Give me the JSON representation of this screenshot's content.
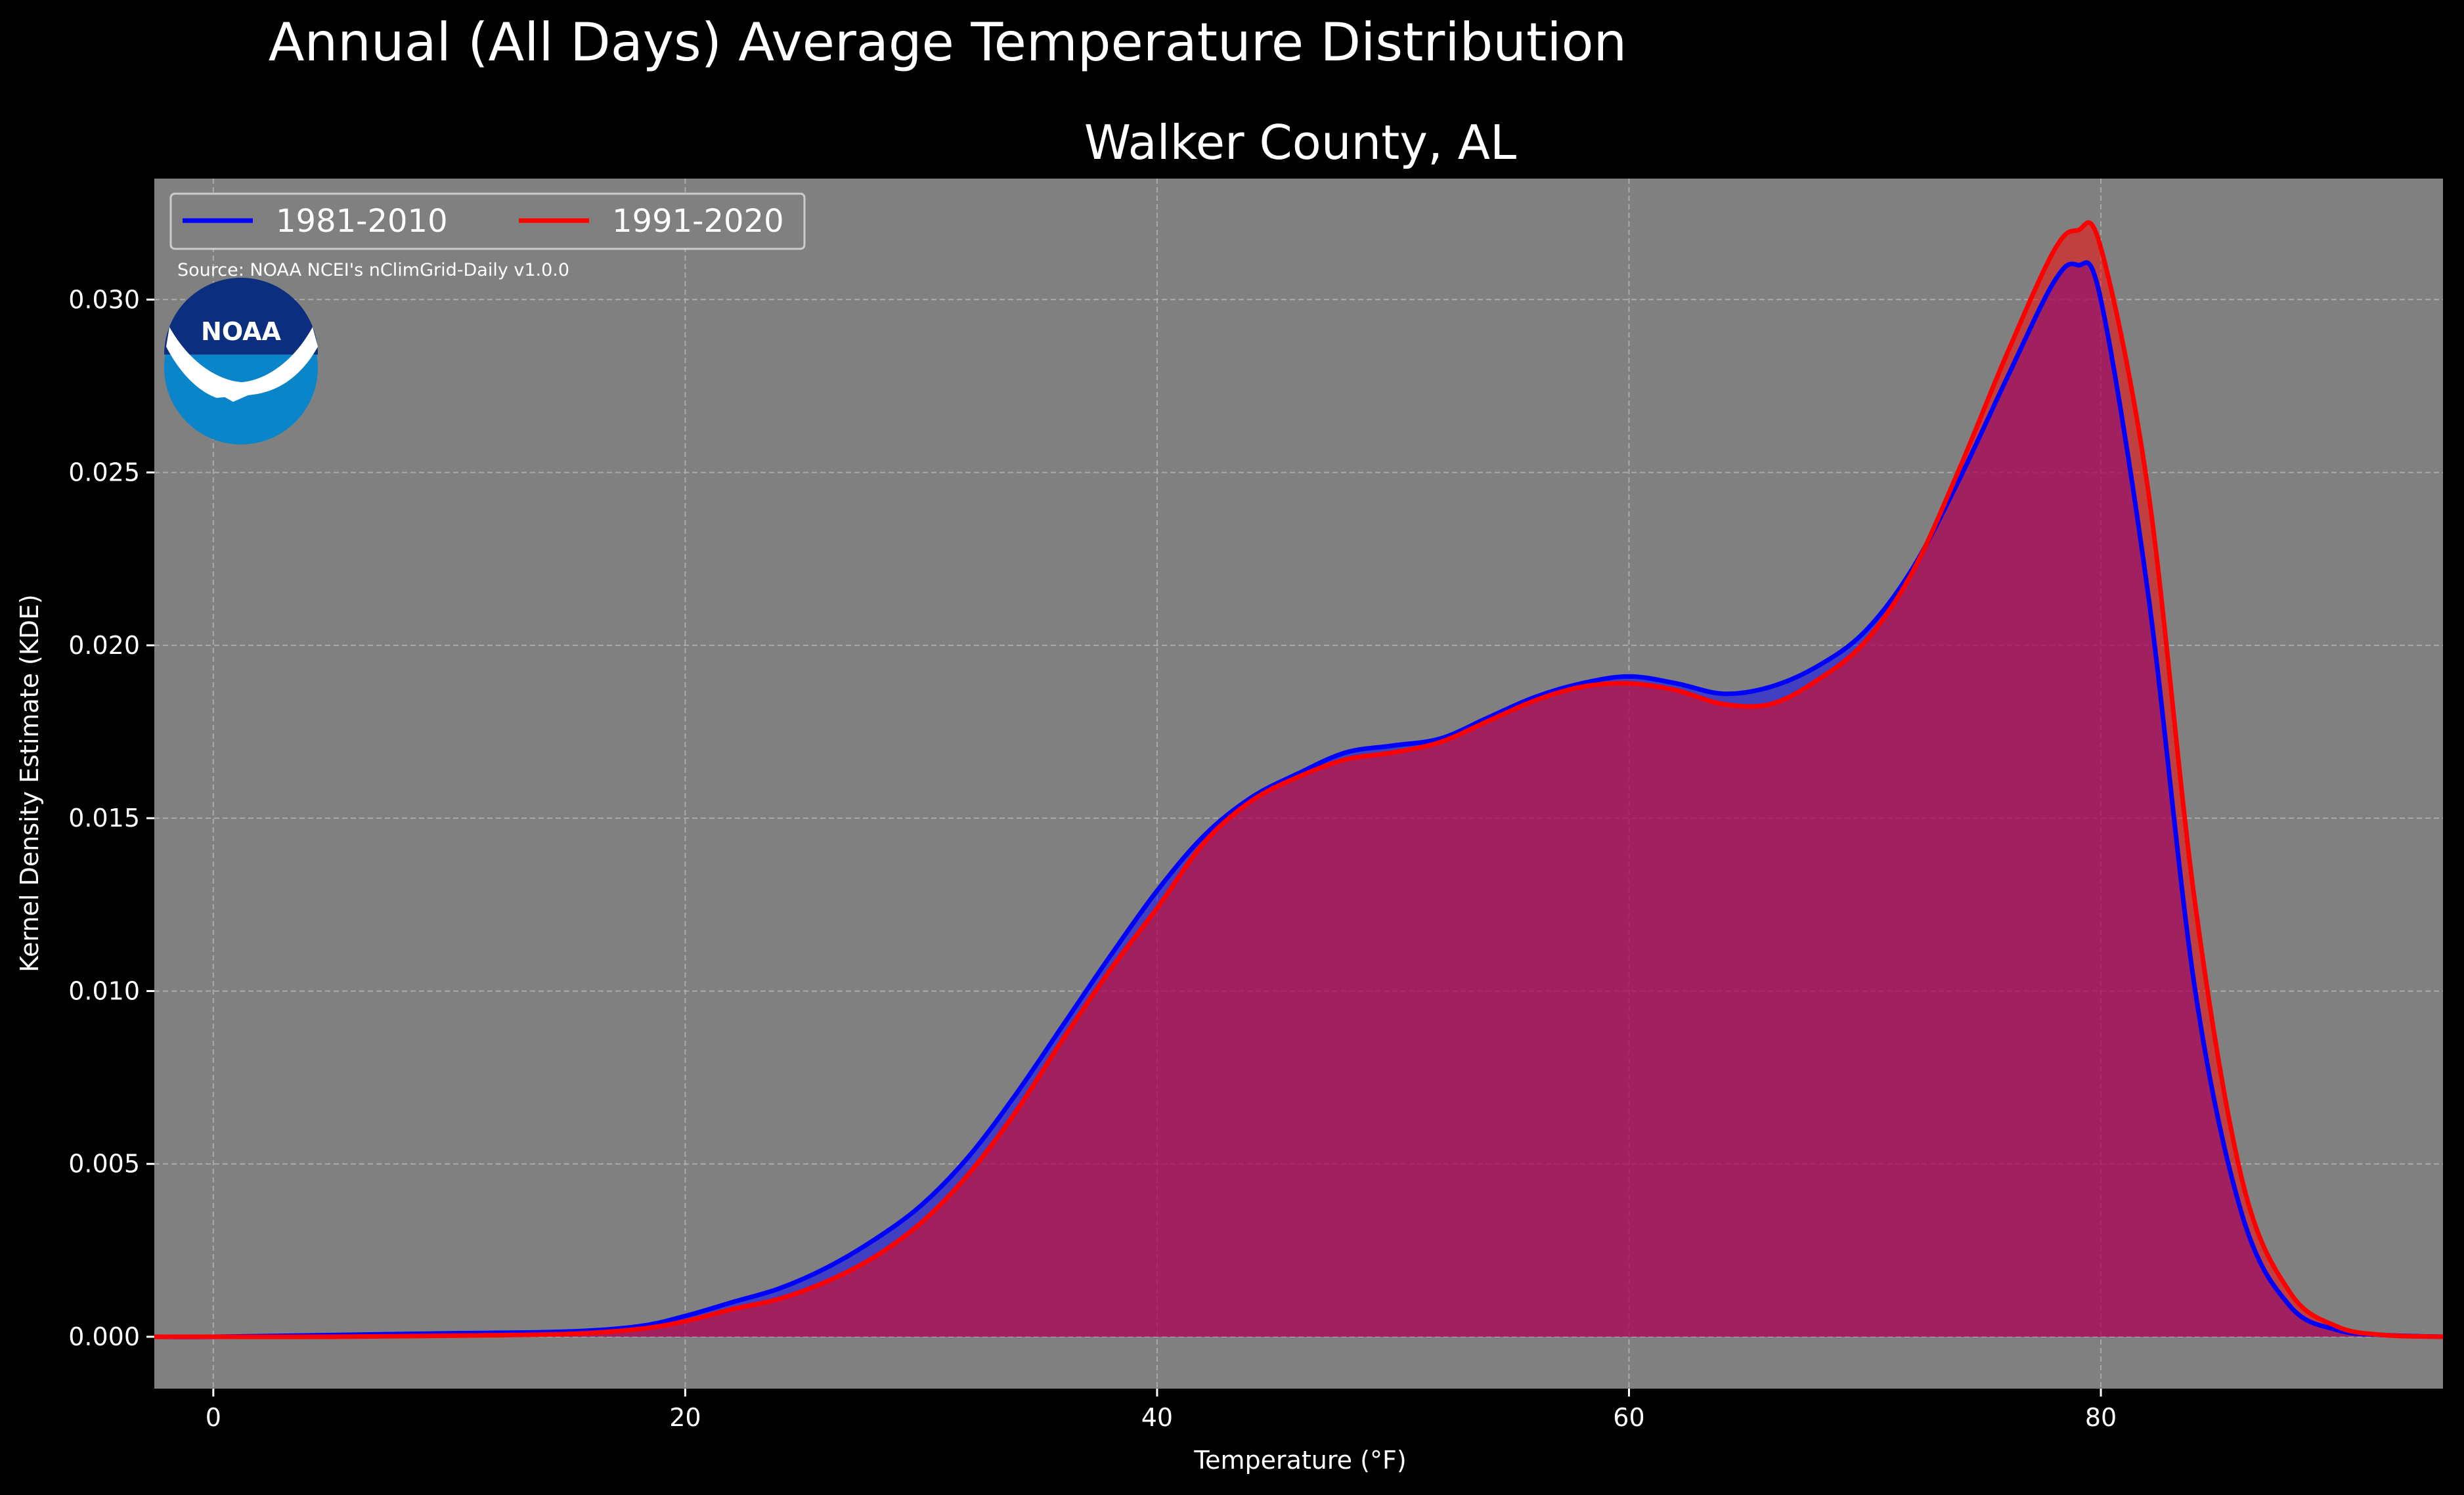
{
  "chart_data": {
    "type": "area",
    "title": "Annual (All Days) Average Temperature Distribution",
    "subtitle": "Walker County, AL",
    "xlabel": "Temperature (°F)",
    "ylabel": "Kernel Density Estimate (KDE)",
    "xlim": [
      -2.5,
      94.5
    ],
    "ylim": [
      -0.0015,
      0.0335
    ],
    "xticks": [
      0,
      20,
      40,
      60,
      80
    ],
    "xtick_labels": [
      "0",
      "20",
      "40",
      "60",
      "80"
    ],
    "yticks": [
      0.0,
      0.005,
      0.01,
      0.015,
      0.02,
      0.025,
      0.03
    ],
    "ytick_labels": [
      "0.000",
      "0.005",
      "0.010",
      "0.015",
      "0.020",
      "0.025",
      "0.030"
    ],
    "grid": true,
    "legend_position": "top-left",
    "annotation": "Source: NOAA NCEI's nClimGrid-Daily v1.0.0",
    "logo_text": "NOAA",
    "background_color": "#808080",
    "x": [
      -2.5,
      0,
      5,
      10,
      15,
      18,
      20,
      22,
      24,
      26,
      28,
      30,
      32,
      34,
      36,
      38,
      40,
      42,
      44,
      46,
      48,
      50,
      52,
      54,
      56,
      58,
      60,
      62,
      64,
      66,
      68,
      70,
      72,
      74,
      76,
      78,
      79,
      80,
      82,
      84,
      86,
      88,
      90,
      92,
      94.5
    ],
    "series": [
      {
        "name": "1981-2010",
        "color": "#0000ff",
        "fill": "#0000ff",
        "values": [
          0.0,
          0.0,
          5e-05,
          0.0001,
          0.00015,
          0.0003,
          0.0006,
          0.001,
          0.0014,
          0.002,
          0.0028,
          0.0038,
          0.0052,
          0.007,
          0.009,
          0.011,
          0.0129,
          0.0145,
          0.0156,
          0.0163,
          0.0169,
          0.0171,
          0.0173,
          0.0179,
          0.0185,
          0.0189,
          0.0191,
          0.0189,
          0.0186,
          0.0188,
          0.0194,
          0.0204,
          0.0222,
          0.0248,
          0.0277,
          0.0305,
          0.031,
          0.03,
          0.0215,
          0.01,
          0.0035,
          0.0009,
          0.0002,
          5e-05,
          0.0
        ]
      },
      {
        "name": "1991-2020",
        "color": "#ff0000",
        "fill": "#ff0000",
        "values": [
          0.0,
          0.0,
          0.0,
          3e-05,
          8e-05,
          0.00022,
          0.00045,
          0.0008,
          0.0011,
          0.0016,
          0.0023,
          0.0033,
          0.0047,
          0.0065,
          0.0086,
          0.0106,
          0.0124,
          0.0143,
          0.0155,
          0.0162,
          0.0167,
          0.0169,
          0.0172,
          0.0178,
          0.0184,
          0.0188,
          0.0189,
          0.0187,
          0.0183,
          0.0183,
          0.019,
          0.0201,
          0.0221,
          0.0251,
          0.0284,
          0.0314,
          0.032,
          0.0315,
          0.0245,
          0.0125,
          0.0045,
          0.0013,
          0.0003,
          5e-05,
          0.0
        ]
      }
    ]
  }
}
